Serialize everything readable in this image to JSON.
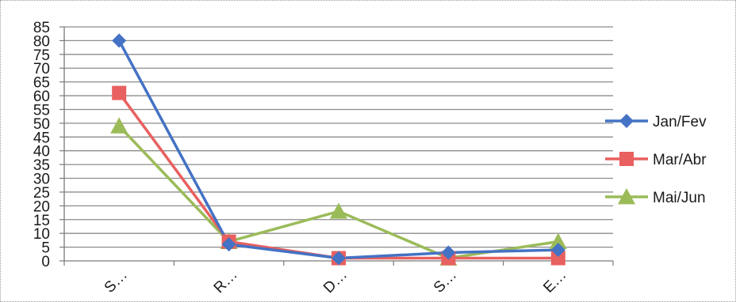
{
  "chart_data": {
    "type": "line",
    "categories": [
      "S…",
      "R…",
      "D…",
      "S…",
      "E…"
    ],
    "series": [
      {
        "name": "Jan/Fev",
        "values": [
          80,
          6,
          1,
          3,
          4
        ],
        "color": "#4472c4",
        "marker": "diamond"
      },
      {
        "name": "Mar/Abr",
        "values": [
          61,
          7,
          1,
          1,
          1
        ],
        "color": "#e8605f",
        "marker": "square"
      },
      {
        "name": "Mai/Jun",
        "values": [
          49,
          7,
          18,
          1,
          7
        ],
        "color": "#9bbb59",
        "marker": "triangle"
      }
    ],
    "ylim": [
      0,
      85
    ],
    "yticks": [
      0,
      5,
      10,
      15,
      20,
      25,
      30,
      35,
      40,
      45,
      50,
      55,
      60,
      65,
      70,
      75,
      80,
      85
    ],
    "grid": true,
    "legend_position": "right",
    "xlabel": "",
    "ylabel": "",
    "title": ""
  }
}
